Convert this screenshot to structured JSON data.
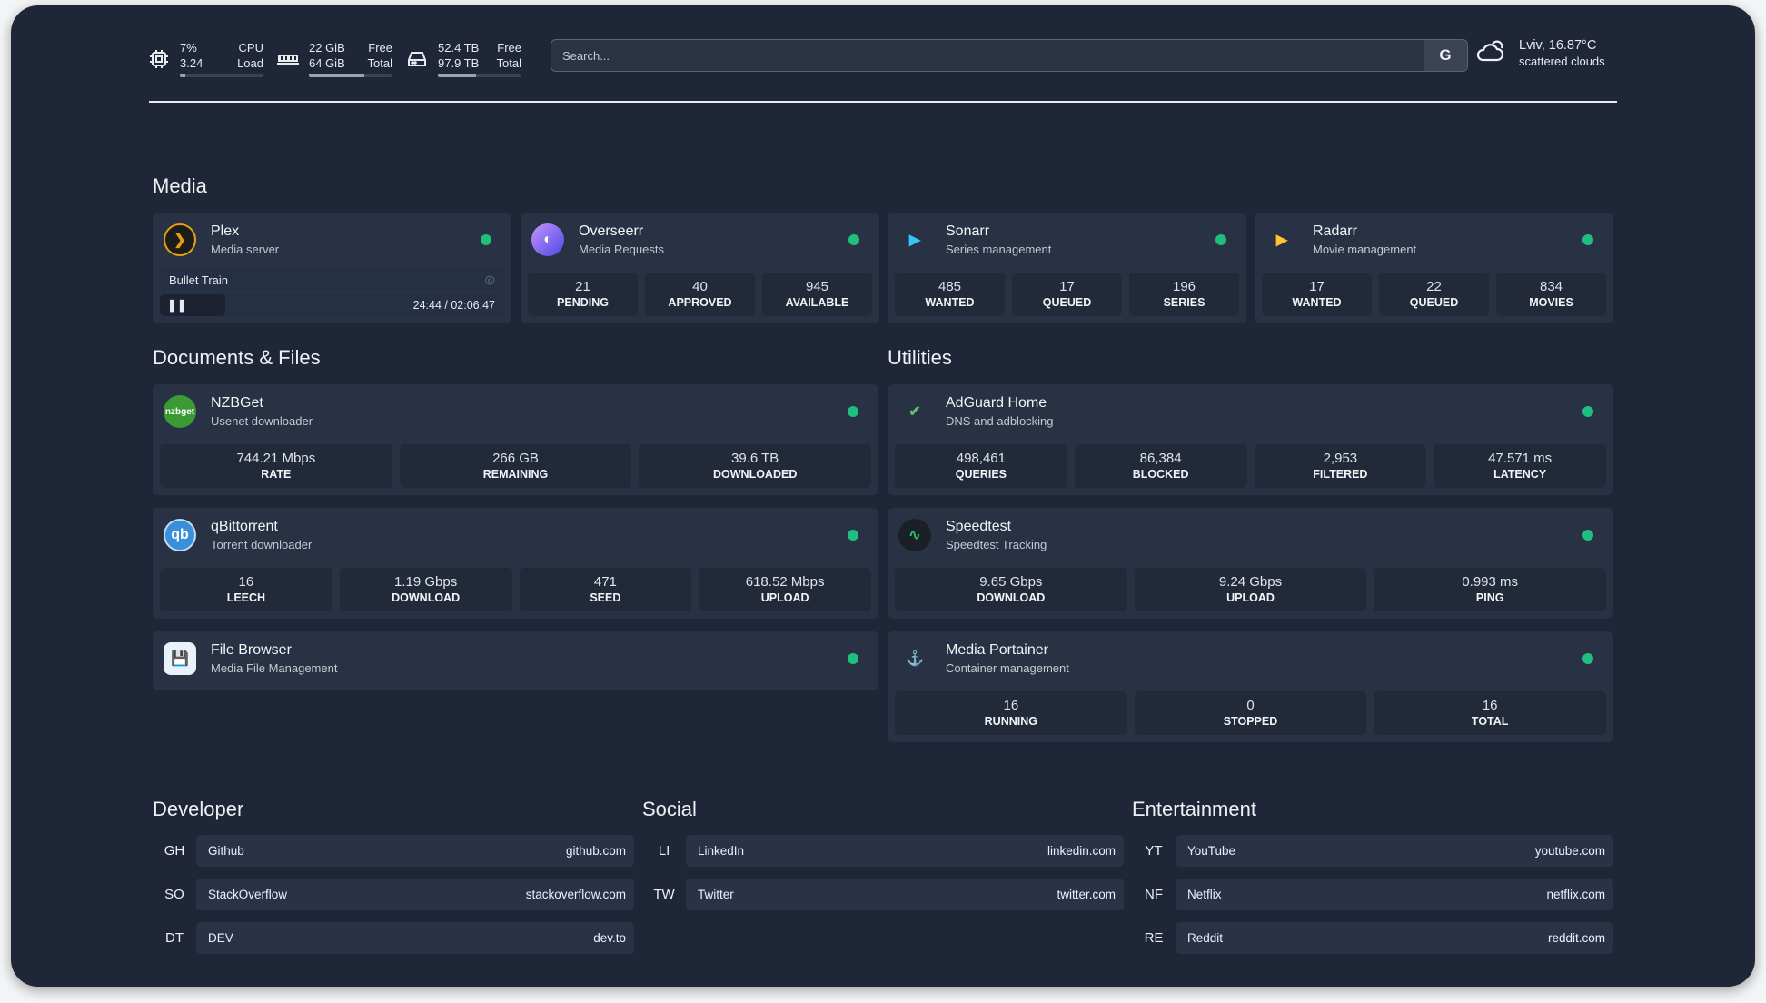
{
  "header": {
    "cpu": {
      "icon": "cpu-icon",
      "v1": "7%",
      "v2": "3.24",
      "l1": "CPU",
      "l2": "Load",
      "percent": 7
    },
    "memory": {
      "icon": "memory-icon",
      "v1": "22 GiB",
      "v2": "64 GiB",
      "l1": "Free",
      "l2": "Total",
      "percent": 66
    },
    "disk": {
      "icon": "disk-icon",
      "v1": "52.4 TB",
      "v2": "97.9 TB",
      "l1": "Free",
      "l2": "Total",
      "percent": 46
    },
    "search": {
      "placeholder": "Search...",
      "button": "G"
    },
    "weather": {
      "icon": "partly-cloudy-icon",
      "location_temp": "Lviv, 16.87°C",
      "condition": "scattered clouds"
    }
  },
  "sections": {
    "media": "Media",
    "documents": "Documents & Files",
    "utilities": "Utilities",
    "developer": "Developer",
    "social": "Social",
    "entertainment": "Entertainment"
  },
  "status_color": "#1fbf7f",
  "services": {
    "plex": {
      "name": "Plex",
      "desc": "Media server",
      "icon": "plex-icon",
      "now_playing": {
        "title": "Bullet Train",
        "time": "24:44 / 02:06:47",
        "progress_percent": 19
      }
    },
    "overseerr": {
      "name": "Overseerr",
      "desc": "Media Requests",
      "icon": "overseerr-icon",
      "stats": [
        {
          "v": "21",
          "l": "PENDING"
        },
        {
          "v": "40",
          "l": "APPROVED"
        },
        {
          "v": "945",
          "l": "AVAILABLE"
        }
      ]
    },
    "sonarr": {
      "name": "Sonarr",
      "desc": "Series management",
      "icon": "sonarr-icon",
      "stats": [
        {
          "v": "485",
          "l": "WANTED"
        },
        {
          "v": "17",
          "l": "QUEUED"
        },
        {
          "v": "196",
          "l": "SERIES"
        }
      ]
    },
    "radarr": {
      "name": "Radarr",
      "desc": "Movie management",
      "icon": "radarr-icon",
      "stats": [
        {
          "v": "17",
          "l": "WANTED"
        },
        {
          "v": "22",
          "l": "QUEUED"
        },
        {
          "v": "834",
          "l": "MOVIES"
        }
      ]
    },
    "nzbget": {
      "name": "NZBGet",
      "desc": "Usenet downloader",
      "icon": "nzbget-icon",
      "logo_text": "nzbget",
      "stats": [
        {
          "v": "744.21 Mbps",
          "l": "RATE"
        },
        {
          "v": "266 GB",
          "l": "REMAINING"
        },
        {
          "v": "39.6 TB",
          "l": "DOWNLOADED"
        }
      ]
    },
    "qbittorrent": {
      "name": "qBittorrent",
      "desc": "Torrent downloader",
      "icon": "qbittorrent-icon",
      "logo_text": "qb",
      "stats": [
        {
          "v": "16",
          "l": "LEECH"
        },
        {
          "v": "1.19 Gbps",
          "l": "DOWNLOAD"
        },
        {
          "v": "471",
          "l": "SEED"
        },
        {
          "v": "618.52 Mbps",
          "l": "UPLOAD"
        }
      ]
    },
    "filebrowser": {
      "name": "File Browser",
      "desc": "Media File Management",
      "icon": "file-browser-icon"
    },
    "adguard": {
      "name": "AdGuard Home",
      "desc": "DNS and adblocking",
      "icon": "adguard-icon",
      "stats": [
        {
          "v": "498,461",
          "l": "QUERIES"
        },
        {
          "v": "86,384",
          "l": "BLOCKED"
        },
        {
          "v": "2,953",
          "l": "FILTERED"
        },
        {
          "v": "47.571 ms",
          "l": "LATENCY"
        }
      ]
    },
    "speedtest": {
      "name": "Speedtest",
      "desc": "Speedtest Tracking",
      "icon": "speedtest-icon",
      "stats": [
        {
          "v": "9.65 Gbps",
          "l": "DOWNLOAD"
        },
        {
          "v": "9.24 Gbps",
          "l": "UPLOAD"
        },
        {
          "v": "0.993 ms",
          "l": "PING"
        }
      ]
    },
    "portainer": {
      "name": "Media Portainer",
      "desc": "Container management",
      "icon": "portainer-icon",
      "stats": [
        {
          "v": "16",
          "l": "RUNNING"
        },
        {
          "v": "0",
          "l": "STOPPED"
        },
        {
          "v": "16",
          "l": "TOTAL"
        }
      ]
    }
  },
  "bookmarks": {
    "developer": [
      {
        "abbr": "GH",
        "name": "Github",
        "url": "github.com"
      },
      {
        "abbr": "SO",
        "name": "StackOverflow",
        "url": "stackoverflow.com"
      },
      {
        "abbr": "DT",
        "name": "DEV",
        "url": "dev.to"
      }
    ],
    "social": [
      {
        "abbr": "LI",
        "name": "LinkedIn",
        "url": "linkedin.com"
      },
      {
        "abbr": "TW",
        "name": "Twitter",
        "url": "twitter.com"
      }
    ],
    "entertainment": [
      {
        "abbr": "YT",
        "name": "YouTube",
        "url": "youtube.com"
      },
      {
        "abbr": "NF",
        "name": "Netflix",
        "url": "netflix.com"
      },
      {
        "abbr": "RE",
        "name": "Reddit",
        "url": "reddit.com"
      }
    ]
  }
}
